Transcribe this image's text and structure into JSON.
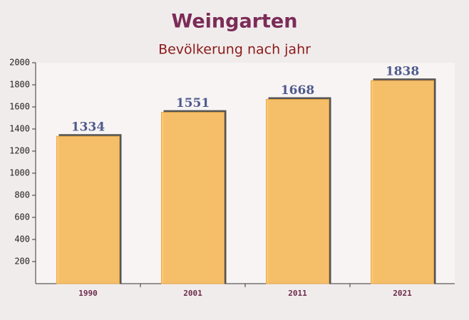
{
  "chart_data": {
    "type": "bar",
    "title": "Weingarten",
    "subtitle": "Bevölkerung nach jahr",
    "categories": [
      "1990",
      "2001",
      "2011",
      "2021"
    ],
    "values": [
      1334,
      1551,
      1668,
      1838
    ],
    "color": "#fec56b",
    "ylim": [
      0,
      2000
    ],
    "yticks": [
      200,
      400,
      600,
      800,
      1000,
      1200,
      1400,
      1600,
      1800,
      2000
    ]
  }
}
